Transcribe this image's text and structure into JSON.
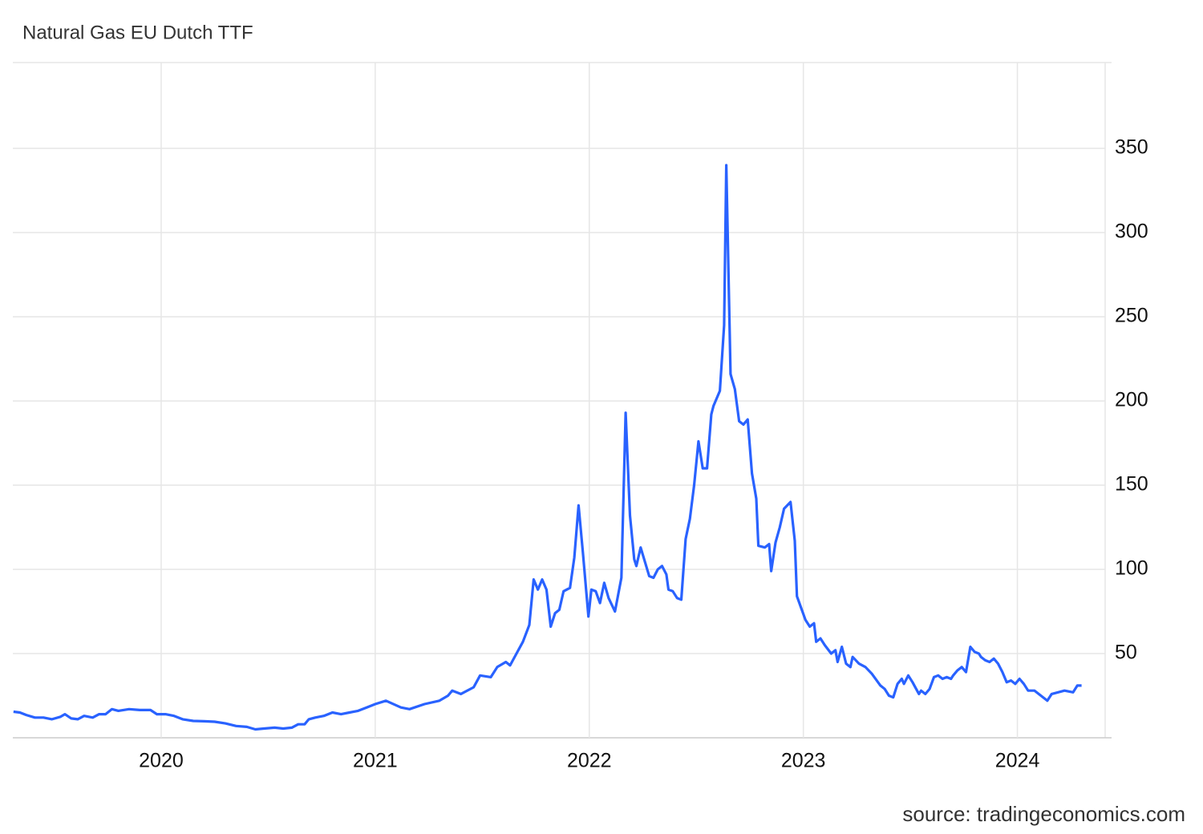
{
  "chart_data": {
    "type": "line",
    "title": "Natural Gas EU Dutch TTF",
    "source": "source: tradingeconomics.com",
    "color": "#2962ff",
    "grid": true,
    "xlim": [
      2019.307,
      2024.41
    ],
    "xticks": [
      2020,
      2021,
      2022,
      2023,
      2024
    ],
    "ylim": [
      0,
      400
    ],
    "yticks": [
      50,
      100,
      150,
      200,
      250,
      300,
      350
    ],
    "x": [
      2019.31,
      2019.34,
      2019.37,
      2019.41,
      2019.45,
      2019.49,
      2019.53,
      2019.55,
      2019.58,
      2019.61,
      2019.64,
      2019.68,
      2019.71,
      2019.74,
      2019.77,
      2019.8,
      2019.85,
      2019.9,
      2019.95,
      2019.98,
      2020.02,
      2020.06,
      2020.1,
      2020.15,
      2020.2,
      2020.25,
      2020.3,
      2020.35,
      2020.4,
      2020.44,
      2020.48,
      2020.53,
      2020.57,
      2020.61,
      2020.64,
      2020.67,
      2020.69,
      2020.72,
      2020.76,
      2020.8,
      2020.84,
      2020.88,
      2020.92,
      2020.96,
      2021.0,
      2021.05,
      2021.12,
      2021.16,
      2021.23,
      2021.3,
      2021.34,
      2021.36,
      2021.4,
      2021.46,
      2021.49,
      2021.54,
      2021.57,
      2021.61,
      2021.63,
      2021.66,
      2021.69,
      2021.72,
      2021.74,
      2021.76,
      2021.78,
      2021.8,
      2021.82,
      2021.84,
      2021.86,
      2021.88,
      2021.91,
      2021.93,
      2021.95,
      2021.97,
      2021.996,
      2022.01,
      2022.03,
      2022.05,
      2022.07,
      2022.09,
      2022.12,
      2022.15,
      2022.17,
      2022.19,
      2022.21,
      2022.22,
      2022.24,
      2022.28,
      2022.3,
      2022.32,
      2022.34,
      2022.36,
      2022.37,
      2022.39,
      2022.41,
      2022.43,
      2022.45,
      2022.47,
      2022.49,
      2022.51,
      2022.53,
      2022.55,
      2022.57,
      2022.58,
      2022.61,
      2022.63,
      2022.64,
      2022.66,
      2022.68,
      2022.7,
      2022.72,
      2022.74,
      2022.76,
      2022.78,
      2022.79,
      2022.82,
      2022.84,
      2022.85,
      2022.87,
      2022.89,
      2022.91,
      2022.94,
      2022.96,
      2022.97,
      2022.99,
      2023.01,
      2023.03,
      2023.05,
      2023.06,
      2023.08,
      2023.1,
      2023.13,
      2023.15,
      2023.16,
      2023.18,
      2023.2,
      2023.22,
      2023.23,
      2023.26,
      2023.29,
      2023.32,
      2023.36,
      2023.38,
      2023.4,
      2023.42,
      2023.44,
      2023.46,
      2023.47,
      2023.49,
      2023.51,
      2023.54,
      2023.55,
      2023.57,
      2023.59,
      2023.61,
      2023.63,
      2023.65,
      2023.67,
      2023.69,
      2023.7,
      2023.72,
      2023.74,
      2023.76,
      2023.78,
      2023.8,
      2023.82,
      2023.83,
      2023.85,
      2023.87,
      2023.89,
      2023.91,
      2023.93,
      2023.95,
      2023.97,
      2023.99,
      2024.01,
      2024.03,
      2024.05,
      2024.08,
      2024.11,
      2024.14,
      2024.16,
      2024.19,
      2024.22,
      2024.26,
      2024.28,
      2024.3
    ],
    "values": [
      15.5,
      15,
      13.5,
      12,
      12,
      11,
      12.5,
      14,
      11.5,
      11,
      13,
      12,
      14,
      14,
      17,
      16,
      17,
      16.5,
      16.5,
      14,
      14,
      13,
      11,
      10,
      9.8,
      9.5,
      8.5,
      7,
      6.5,
      5,
      5.5,
      6,
      5.5,
      6,
      8,
      8,
      11,
      12,
      13,
      15,
      14,
      15,
      16,
      18,
      20,
      22,
      18,
      17,
      20,
      22,
      25,
      28,
      26,
      30,
      37,
      36,
      42,
      45,
      43,
      50,
      57,
      67,
      94,
      88,
      94,
      88,
      66,
      74,
      76,
      87,
      89,
      107,
      138,
      110,
      72,
      88,
      87,
      80,
      92,
      83,
      75,
      95,
      193,
      132,
      106,
      102,
      113,
      96,
      95,
      100,
      102,
      97,
      88,
      87,
      83,
      82,
      118,
      130,
      150,
      176,
      160,
      160,
      192,
      197,
      206,
      245,
      340,
      216,
      207,
      188,
      186,
      189,
      157,
      142,
      114,
      113,
      115,
      99,
      116,
      125,
      136,
      140,
      117,
      84,
      77,
      70,
      66,
      68,
      57,
      59,
      55,
      50,
      52,
      45,
      54,
      44,
      42,
      48,
      44,
      42,
      38,
      31,
      29,
      25,
      24,
      32,
      35,
      32,
      37,
      33,
      26,
      28,
      26,
      29,
      36,
      37,
      35,
      36,
      35,
      37,
      40,
      42,
      39,
      54,
      51,
      50,
      48,
      46,
      45,
      47,
      44,
      39,
      33,
      34,
      32,
      35,
      32,
      28,
      28,
      25,
      22,
      26,
      27,
      28,
      27,
      31,
      31
    ]
  }
}
